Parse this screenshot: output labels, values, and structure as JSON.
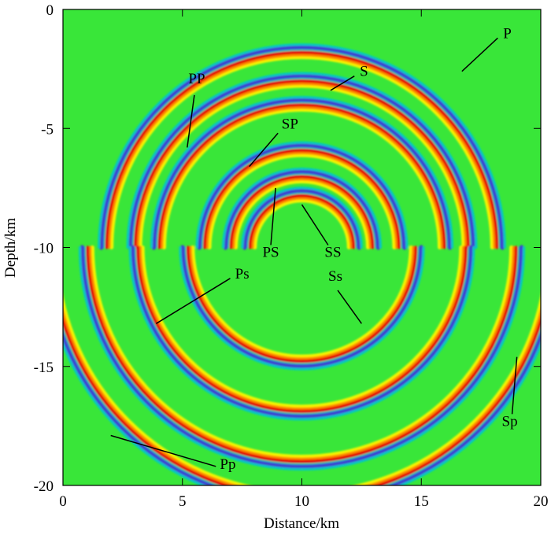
{
  "chart_data": {
    "type": "heatmap",
    "title": "",
    "xlabel": "Distance/km",
    "ylabel": "Depth/km",
    "xlim": [
      0,
      20
    ],
    "ylim": [
      -20,
      0
    ],
    "x_ticks": [
      "0",
      "5",
      "10",
      "15",
      "20"
    ],
    "y_ticks": [
      "0",
      "-5",
      "-10",
      "-15",
      "-20"
    ],
    "colormap": {
      "background": "#39e639",
      "positive": [
        "#f5f500",
        "#ff8a00",
        "#e60000"
      ],
      "negative": [
        "#00c8c8",
        "#3c3cd2",
        "#7878ff"
      ]
    },
    "source": {
      "x": 10,
      "y": -10
    },
    "wavefronts": [
      {
        "name": "P",
        "cx": 10,
        "cy": -10,
        "r": 8.2,
        "part": "upper"
      },
      {
        "name": "S",
        "cx": 10,
        "cy": -10,
        "r": 6.0,
        "part": "upper"
      },
      {
        "name": "PP",
        "cx": 10,
        "cy": -10,
        "r": 7.0,
        "part": "upper"
      },
      {
        "name": "SP",
        "cx": 10,
        "cy": -10,
        "r": 4.1,
        "part": "upper"
      },
      {
        "name": "PS",
        "cx": 10,
        "cy": -10,
        "r": 3.0,
        "part": "upper"
      },
      {
        "name": "SS",
        "cx": 10,
        "cy": -10,
        "r": 2.2,
        "part": "upper"
      },
      {
        "name": "Ss",
        "cx": 10,
        "cy": -10,
        "r": 4.8,
        "part": "lower"
      },
      {
        "name": "Ps",
        "cx": 10,
        "cy": -10,
        "r": 6.9,
        "part": "lower"
      },
      {
        "name": "Pp",
        "cx": 10,
        "cy": -10,
        "r": 9.0,
        "part": "lower"
      },
      {
        "name": "Sp",
        "cx": 10,
        "cy": -10,
        "r": 10.5,
        "part": "lower"
      }
    ],
    "annotations": [
      {
        "text": "P",
        "label_x": 18.6,
        "label_y": -1.2,
        "line": [
          [
            18.2,
            -1.2
          ],
          [
            16.7,
            -2.6
          ]
        ]
      },
      {
        "text": "S",
        "label_x": 12.6,
        "label_y": -2.8,
        "line": [
          [
            12.2,
            -2.8
          ],
          [
            11.2,
            -3.4
          ]
        ]
      },
      {
        "text": "PP",
        "label_x": 5.6,
        "label_y": -3.1,
        "line": [
          [
            5.5,
            -3.6
          ],
          [
            5.2,
            -5.8
          ]
        ]
      },
      {
        "text": "SP",
        "label_x": 9.5,
        "label_y": -5.0,
        "line": [
          [
            9.0,
            -5.2
          ],
          [
            7.8,
            -6.6
          ]
        ]
      },
      {
        "text": "PS",
        "label_x": 8.7,
        "label_y": -10.4,
        "line": [
          [
            8.7,
            -9.9
          ],
          [
            8.9,
            -7.5
          ]
        ]
      },
      {
        "text": "SS",
        "label_x": 11.3,
        "label_y": -10.4,
        "line": [
          [
            11.1,
            -9.9
          ],
          [
            10.0,
            -8.2
          ]
        ]
      },
      {
        "text": "Ps",
        "label_x": 7.5,
        "label_y": -11.3,
        "line": [
          [
            7.0,
            -11.3
          ],
          [
            3.9,
            -13.2
          ]
        ]
      },
      {
        "text": "Ss",
        "label_x": 11.4,
        "label_y": -11.4,
        "line": [
          [
            11.5,
            -11.8
          ],
          [
            12.5,
            -13.2
          ]
        ]
      },
      {
        "text": "Sp",
        "label_x": 18.7,
        "label_y": -17.5,
        "line": [
          [
            18.8,
            -17.0
          ],
          [
            19.0,
            -14.6
          ]
        ]
      },
      {
        "text": "Pp",
        "label_x": 6.9,
        "label_y": -19.3,
        "line": [
          [
            6.4,
            -19.2
          ],
          [
            2.0,
            -17.9
          ]
        ]
      }
    ]
  }
}
